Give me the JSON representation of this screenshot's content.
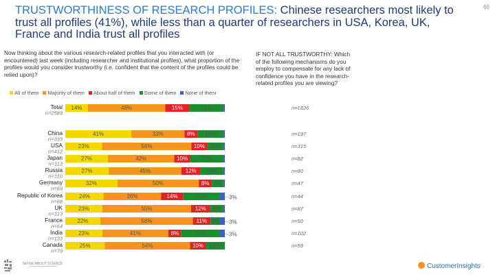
{
  "title": {
    "highlight": "TRUSTWORTHINESS OF RESEARCH PROFILES:",
    "rest": " Chinese researchers most likely to trust all profiles (41%), while less than a quarter of researchers in USA, Korea, UK, France and India trust all profiles"
  },
  "page_number": "60",
  "question": "Now thinking about the various research-related profiles that you interacted with (or encountered) last week (including researcher and institutional profiles), what proportion of the profiles would you consider trustworthy (i.e. confident that the content of the profiles could be relied upon)?",
  "side_note": "IF NOT ALL TRUSTWORTHY: Which of the following mechanisms do you employ to compensate for any lack of confidence you have in the research-related profiles you are viewing?",
  "footer": {
    "logo_left": "SENSE ABOUT SCIENCE",
    "logo_right": "CustomerInsights"
  },
  "colors": {
    "all": "#f5d800",
    "majority": "#f7941d",
    "about_half": "#e02424",
    "some": "#1a8f2e",
    "none": "#3b5fc4"
  },
  "chart_data": {
    "type": "bar",
    "orientation": "horizontal",
    "stacked": true,
    "legend_position": "top",
    "series": [
      {
        "name": "All of them",
        "color_key": "all"
      },
      {
        "name": "Majority of them",
        "color_key": "majority"
      },
      {
        "name": "About half of them",
        "color_key": "about_half"
      },
      {
        "name": "Some of them",
        "color_key": "some"
      },
      {
        "name": "None of them",
        "color_key": "none"
      }
    ],
    "rows": [
      {
        "category": "Total",
        "n": "n=2589",
        "values": [
          14,
          48,
          15,
          21,
          1
        ],
        "labels": [
          "14%",
          "48%",
          "15%",
          "21%",
          ""
        ],
        "outside_label": "",
        "right_n": "n=1826"
      },
      {
        "category": "China",
        "n": "n=333",
        "values": [
          41,
          33,
          8,
          16,
          1
        ],
        "labels": [
          "41%",
          "33%",
          "8%",
          "16%",
          ""
        ],
        "outside_label": "",
        "right_n": "n=197"
      },
      {
        "category": "USA",
        "n": "n=412",
        "values": [
          23,
          56,
          10,
          10,
          1
        ],
        "labels": [
          "23%",
          "56%",
          "10%",
          "10%",
          ""
        ],
        "outside_label": "",
        "right_n": "n=315"
      },
      {
        "category": "Japan",
        "n": "n=113",
        "values": [
          27,
          42,
          10,
          21,
          1
        ],
        "labels": [
          "27%",
          "42%",
          "10%",
          "21%",
          ""
        ],
        "outside_label": "",
        "right_n": "n=82"
      },
      {
        "category": "Russia",
        "n": "n=110",
        "values": [
          27,
          45,
          12,
          14,
          1
        ],
        "labels": [
          "27%",
          "45%",
          "12%",
          "14%",
          ""
        ],
        "outside_label": "",
        "right_n": "n=80"
      },
      {
        "category": "Germany",
        "n": "n=69",
        "values": [
          32,
          50,
          8,
          7,
          1
        ],
        "labels": [
          "32%",
          "50%",
          "8%",
          "7%",
          ""
        ],
        "outside_label": "",
        "right_n": "n=47"
      },
      {
        "category": "Republic of Korea",
        "n": "n=68",
        "values": [
          24,
          36,
          14,
          23,
          3
        ],
        "labels": [
          "24%",
          "36%",
          "14%",
          "23%",
          ""
        ],
        "outside_label": "3%",
        "right_n": "n=44"
      },
      {
        "category": "UK",
        "n": "n=113",
        "values": [
          23,
          55,
          12,
          8,
          1
        ],
        "labels": [
          "23%",
          "55%",
          "12%",
          "8%",
          ""
        ],
        "outside_label": "",
        "right_n": "n=87"
      },
      {
        "category": "France",
        "n": "n=64",
        "values": [
          22,
          58,
          11,
          6,
          3
        ],
        "labels": [
          "22%",
          "58%",
          "11%",
          "6%",
          ""
        ],
        "outside_label": "3%",
        "right_n": "n=50"
      },
      {
        "category": "India",
        "n": "n=133",
        "values": [
          23,
          41,
          8,
          24,
          3
        ],
        "labels": [
          "23%",
          "41%",
          "8%",
          "24%",
          ""
        ],
        "outside_label": "3%",
        "right_n": "n=102"
      },
      {
        "category": "Canada",
        "n": "n=79",
        "values": [
          25,
          54,
          10,
          12,
          0
        ],
        "labels": [
          "25%",
          "54%",
          "10%",
          "12%",
          ""
        ],
        "outside_label": "",
        "right_n": "n=59"
      }
    ]
  }
}
